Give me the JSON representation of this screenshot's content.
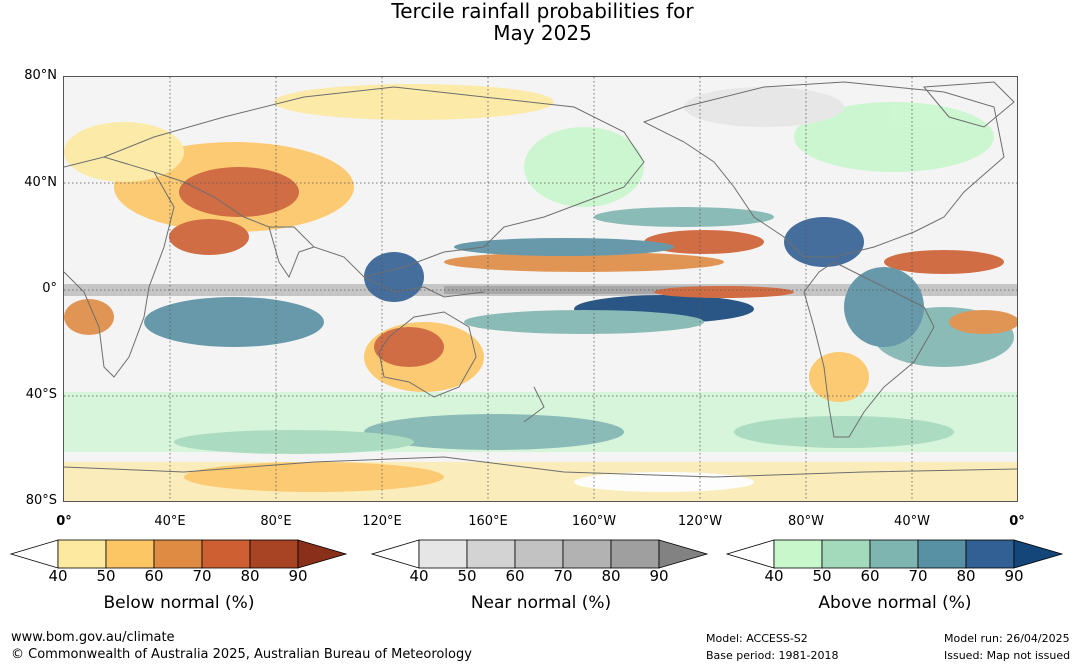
{
  "title": {
    "line1": "Tercile rainfall probabilities for",
    "line2": "May 2025"
  },
  "map": {
    "lat_labels": [
      "80°N",
      "40°N",
      "0°",
      "40°S",
      "80°S"
    ],
    "lon_labels": [
      "0°",
      "40°E",
      "80°E",
      "120°E",
      "160°E",
      "160°W",
      "120°W",
      "80°W",
      "40°W",
      "0°"
    ]
  },
  "colorbars": [
    {
      "title": "Below normal (%)",
      "ticks": [
        "40",
        "50",
        "60",
        "70",
        "80",
        "90"
      ],
      "colors": [
        "#ffffff",
        "#fde9a0",
        "#fdc665",
        "#e08b44",
        "#cd5f32",
        "#a84324",
        "#8a2f19"
      ]
    },
    {
      "title": "Near normal (%)",
      "ticks": [
        "40",
        "50",
        "60",
        "70",
        "80",
        "90"
      ],
      "colors": [
        "#ffffff",
        "#e6e6e6",
        "#d3d3d3",
        "#c2c2c2",
        "#b2b2b2",
        "#9f9f9f",
        "#828282"
      ]
    },
    {
      "title": "Above normal (%)",
      "ticks": [
        "40",
        "50",
        "60",
        "70",
        "80",
        "90"
      ],
      "colors": [
        "#ffffff",
        "#c8f7cc",
        "#a4dabc",
        "#7fb5b1",
        "#5890a4",
        "#336094",
        "#14467a"
      ]
    }
  ],
  "footer": {
    "website": "www.bom.gov.au/climate",
    "copyright": "© Commonwealth of Australia 2025, Australian Bureau of Meteorology",
    "model": "Model: ACCESS-S2",
    "base_period": "Base period: 1981-2018",
    "model_run": "Model run: 26/04/2025",
    "issued": "Issued: Map not issued"
  }
}
